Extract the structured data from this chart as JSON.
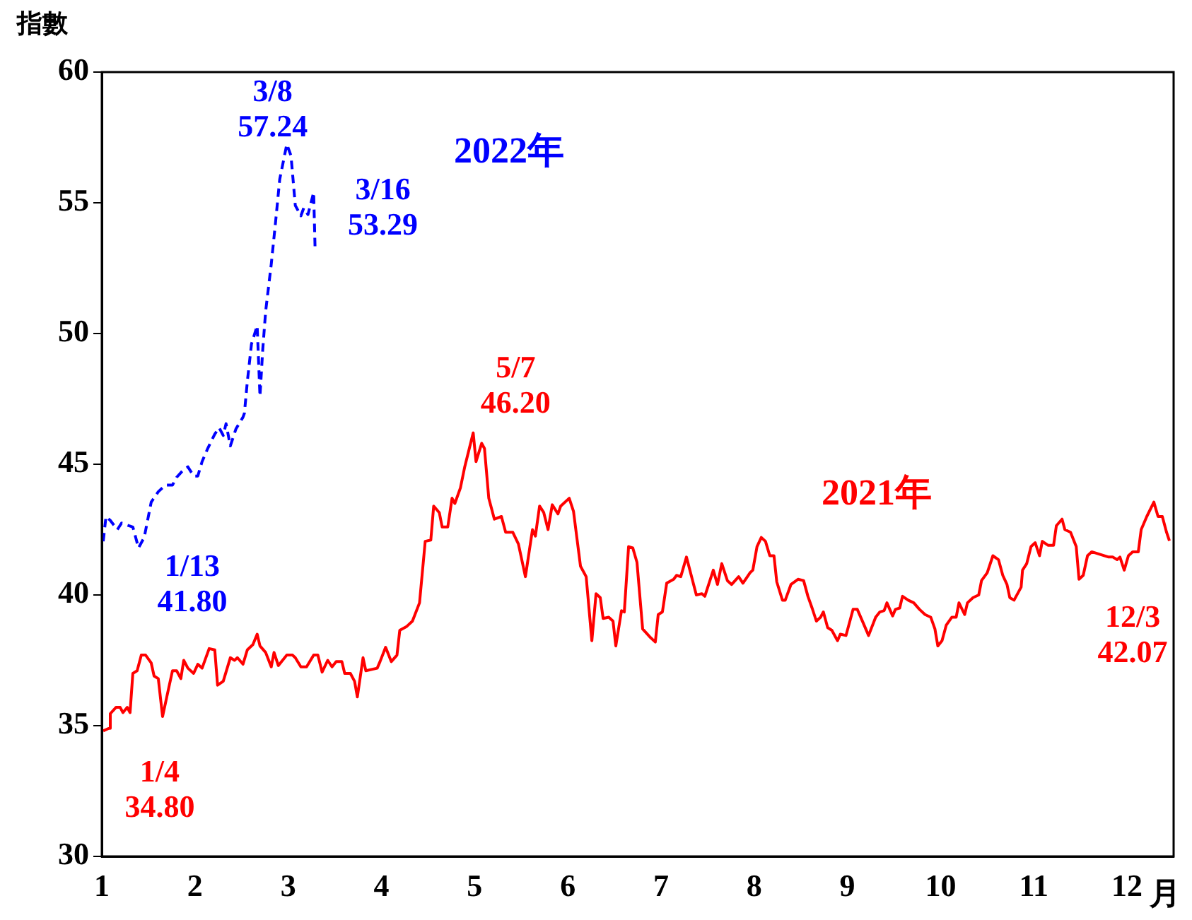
{
  "chart_data": {
    "type": "line",
    "ylabel": "指數",
    "xlabel": "月",
    "xlim": [
      1,
      12.5
    ],
    "xticks": [
      1,
      2,
      3,
      4,
      5,
      6,
      7,
      8,
      9,
      10,
      11,
      12
    ],
    "ylim": [
      30,
      60
    ],
    "yticks": [
      30,
      35,
      40,
      45,
      50,
      55,
      60
    ],
    "marker": "none",
    "legend": false,
    "series": [
      {
        "name": "2021年",
        "color": "#ff0000",
        "line_style": "solid",
        "x": [
          1.015,
          1.076,
          1.091,
          1.152,
          1.197,
          1.227,
          1.273,
          1.303,
          1.333,
          1.379,
          1.424,
          1.47,
          1.53,
          1.561,
          1.606,
          1.652,
          1.697,
          1.758,
          1.803,
          1.848,
          1.879,
          1.924,
          1.985,
          2.03,
          2.076,
          2.152,
          2.212,
          2.242,
          2.303,
          2.379,
          2.424,
          2.455,
          2.515,
          2.561,
          2.621,
          2.667,
          2.697,
          2.758,
          2.818,
          2.848,
          2.894,
          2.985,
          3.045,
          3.076,
          3.136,
          3.197,
          3.273,
          3.318,
          3.364,
          3.424,
          3.47,
          3.515,
          3.576,
          3.606,
          3.667,
          3.712,
          3.742,
          3.803,
          3.833,
          3.955,
          3.985,
          4.045,
          4.106,
          4.167,
          4.197,
          4.273,
          4.333,
          4.409,
          4.47,
          4.53,
          4.561,
          4.621,
          4.652,
          4.712,
          4.758,
          4.788,
          4.848,
          4.894,
          4.985,
          5.015,
          5.076,
          5.106,
          5.152,
          5.212,
          5.288,
          5.333,
          5.409,
          5.47,
          5.545,
          5.621,
          5.652,
          5.697,
          5.742,
          5.788,
          5.833,
          5.894,
          5.924,
          6.015,
          6.061,
          6.136,
          6.197,
          6.258,
          6.303,
          6.348,
          6.379,
          6.439,
          6.485,
          6.515,
          6.576,
          6.606,
          6.652,
          6.697,
          6.742,
          6.803,
          6.879,
          6.939,
          6.97,
          7.015,
          7.061,
          7.136,
          7.167,
          7.212,
          7.273,
          7.379,
          7.439,
          7.47,
          7.561,
          7.606,
          7.652,
          7.712,
          7.758,
          7.833,
          7.879,
          7.955,
          7.985,
          8.03,
          8.076,
          8.121,
          8.167,
          8.212,
          8.242,
          8.303,
          8.333,
          8.394,
          8.47,
          8.53,
          8.576,
          8.621,
          8.667,
          8.712,
          8.742,
          8.788,
          8.833,
          8.894,
          8.924,
          8.985,
          9.061,
          9.106,
          9.167,
          9.227,
          9.303,
          9.348,
          9.394,
          9.424,
          9.485,
          9.515,
          9.561,
          9.591,
          9.652,
          9.712,
          9.773,
          9.833,
          9.894,
          9.939,
          9.97,
          10.015,
          10.061,
          10.121,
          10.167,
          10.197,
          10.258,
          10.288,
          10.348,
          10.409,
          10.439,
          10.5,
          10.561,
          10.621,
          10.667,
          10.712,
          10.742,
          10.788,
          10.864,
          10.879,
          10.924,
          10.97,
          11.015,
          11.061,
          11.091,
          11.152,
          11.212,
          11.242,
          11.303,
          11.333,
          11.394,
          11.455,
          11.485,
          11.53,
          11.576,
          11.621,
          11.712,
          11.803,
          11.848,
          11.894,
          11.924,
          11.97,
          12.015,
          12.061,
          12.121,
          12.152,
          12.212,
          12.288,
          12.333,
          12.379,
          12.424,
          12.455
        ],
        "values": [
          34.8,
          34.9,
          35.46,
          35.7,
          35.7,
          35.5,
          35.7,
          35.5,
          37.0,
          37.1,
          37.7,
          37.7,
          37.4,
          36.9,
          36.8,
          35.35,
          36.1,
          37.1,
          37.1,
          36.8,
          37.5,
          37.2,
          37.0,
          37.35,
          37.2,
          37.95,
          37.9,
          36.55,
          36.7,
          37.6,
          37.5,
          37.6,
          37.35,
          37.9,
          38.1,
          38.5,
          38.05,
          37.8,
          37.25,
          37.8,
          37.3,
          37.7,
          37.7,
          37.6,
          37.25,
          37.25,
          37.7,
          37.7,
          37.05,
          37.5,
          37.25,
          37.45,
          37.45,
          37.0,
          37.0,
          36.7,
          36.1,
          37.6,
          37.1,
          37.2,
          37.45,
          38.0,
          37.45,
          37.7,
          38.65,
          38.8,
          39.0,
          39.7,
          42.05,
          42.1,
          43.4,
          43.15,
          42.6,
          42.6,
          43.7,
          43.5,
          44.1,
          44.9,
          46.2,
          45.1,
          45.8,
          45.6,
          43.7,
          42.9,
          43.0,
          42.4,
          42.4,
          41.95,
          40.7,
          42.5,
          42.25,
          43.4,
          43.15,
          42.5,
          43.45,
          43.1,
          43.4,
          43.7,
          43.2,
          41.1,
          40.7,
          38.25,
          40.05,
          39.9,
          39.1,
          39.15,
          39.0,
          38.05,
          39.4,
          39.35,
          41.85,
          41.8,
          41.25,
          38.7,
          38.4,
          38.2,
          39.25,
          39.35,
          40.45,
          40.6,
          40.75,
          40.7,
          41.45,
          40.0,
          40.05,
          39.95,
          40.95,
          40.4,
          41.2,
          40.55,
          40.4,
          40.7,
          40.45,
          40.85,
          40.95,
          41.85,
          42.2,
          42.05,
          41.5,
          41.5,
          40.5,
          39.8,
          39.8,
          40.4,
          40.6,
          40.55,
          39.95,
          39.5,
          39.0,
          39.15,
          39.35,
          38.75,
          38.65,
          38.25,
          38.5,
          38.45,
          39.45,
          39.45,
          38.95,
          38.45,
          39.15,
          39.35,
          39.4,
          39.7,
          39.2,
          39.45,
          39.5,
          39.95,
          39.8,
          39.7,
          39.45,
          39.25,
          39.15,
          38.7,
          38.05,
          38.25,
          38.85,
          39.15,
          39.15,
          39.7,
          39.25,
          39.7,
          39.9,
          40.0,
          40.55,
          40.85,
          41.5,
          41.35,
          40.75,
          40.4,
          39.9,
          39.8,
          40.3,
          40.95,
          41.2,
          41.85,
          42.0,
          41.5,
          42.05,
          41.9,
          41.9,
          42.65,
          42.9,
          42.5,
          42.4,
          41.85,
          40.6,
          40.75,
          41.5,
          41.65,
          41.55,
          41.45,
          41.45,
          41.35,
          41.45,
          40.95,
          41.5,
          41.65,
          41.65,
          42.5,
          43.0,
          43.55,
          43.0,
          43.0,
          42.4,
          42.07
        ]
      },
      {
        "name": "2022年",
        "color": "#0000ff",
        "line_style": "dashed",
        "x": [
          1.015,
          1.045,
          1.091,
          1.167,
          1.212,
          1.288,
          1.333,
          1.394,
          1.455,
          1.53,
          1.606,
          1.682,
          1.758,
          1.803,
          1.879,
          1.924,
          1.985,
          2.03,
          2.076,
          2.136,
          2.212,
          2.258,
          2.303,
          2.333,
          2.379,
          2.439,
          2.515,
          2.53,
          2.561,
          2.606,
          2.667,
          2.697,
          2.727,
          2.758,
          2.818,
          2.864,
          2.909,
          2.985,
          3.03,
          3.076,
          3.136,
          3.167,
          3.212,
          3.273,
          3.288
        ],
        "values": [
          42.05,
          43.0,
          42.85,
          42.5,
          42.75,
          42.65,
          42.6,
          41.8,
          42.2,
          43.55,
          43.95,
          44.2,
          44.2,
          44.5,
          44.8,
          44.9,
          44.55,
          44.55,
          45.1,
          45.6,
          46.15,
          46.4,
          46.1,
          46.55,
          45.7,
          46.35,
          46.8,
          46.95,
          48.15,
          49.6,
          50.3,
          47.6,
          49.4,
          50.85,
          52.65,
          54.25,
          55.9,
          57.24,
          56.8,
          54.9,
          54.5,
          54.8,
          54.55,
          55.4,
          53.29
        ]
      }
    ],
    "annotations": [
      {
        "text": "1/4\n34.80",
        "x": 1.015,
        "y": 34.8
      },
      {
        "text": "5/7\n46.20",
        "x": 4.985,
        "y": 46.2
      },
      {
        "text": "12/3\n42.07",
        "x": 12.455,
        "y": 42.07
      },
      {
        "text": "1/13\n41.80",
        "x": 1.394,
        "y": 41.8
      },
      {
        "text": "3/8\n57.24",
        "x": 2.985,
        "y": 57.24
      },
      {
        "text": "3/16\n53.29",
        "x": 3.288,
        "y": 53.29
      }
    ]
  }
}
